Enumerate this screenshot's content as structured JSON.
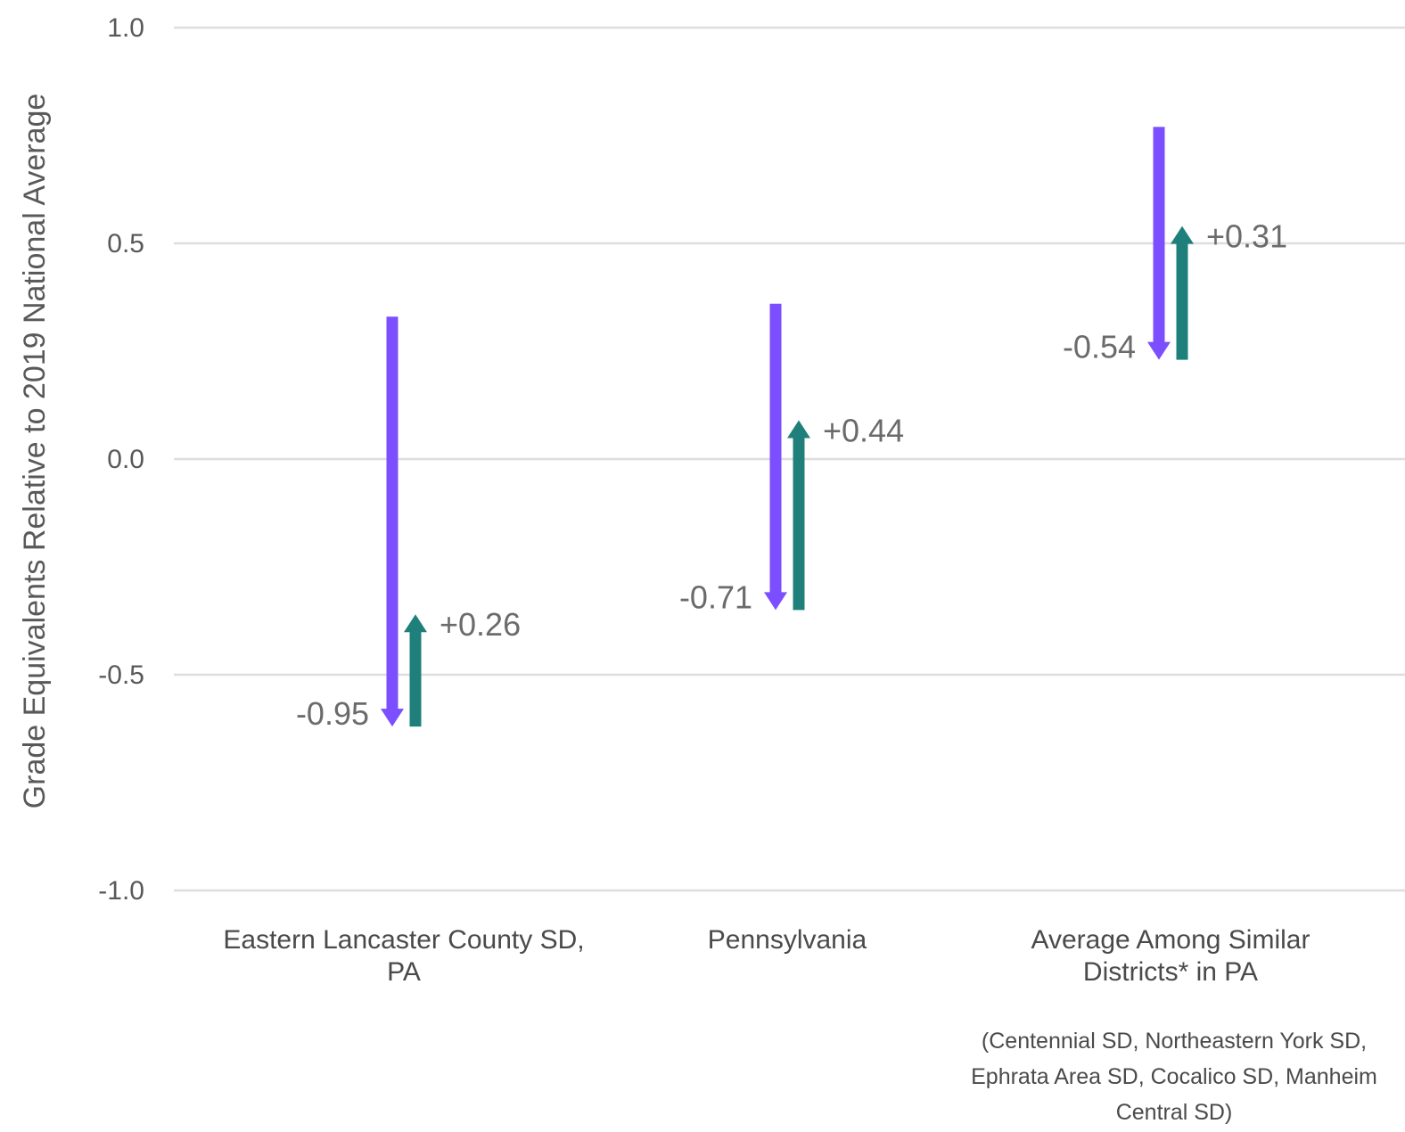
{
  "chart_data": {
    "type": "arrow",
    "ylabel": "Grade Equivalents Relative to 2019 National Average",
    "ylim": [
      -1.0,
      1.0
    ],
    "yticks": [
      1.0,
      0.5,
      0.0,
      -0.5,
      -1.0
    ],
    "ytick_labels": [
      "1.0",
      "0.5",
      "0.0",
      "-0.5",
      "-1.0"
    ],
    "grid": true,
    "colors": {
      "decline": "#7B4FFF",
      "recovery": "#1F7F7A",
      "grid": "#dedede",
      "text": "#595959"
    },
    "categories": [
      {
        "label_lines": [
          "Eastern Lancaster County SD,",
          "PA"
        ],
        "note_lines": [],
        "decline": {
          "start": 0.33,
          "end": -0.62,
          "label": "-0.95"
        },
        "recovery": {
          "start": -0.62,
          "end": -0.36,
          "label": "+0.26"
        }
      },
      {
        "label_lines": [
          "Pennsylvania"
        ],
        "note_lines": [],
        "decline": {
          "start": 0.36,
          "end": -0.35,
          "label": "-0.71"
        },
        "recovery": {
          "start": -0.35,
          "end": 0.09,
          "label": "+0.44"
        }
      },
      {
        "label_lines": [
          "Average Among Similar",
          "Districts* in PA"
        ],
        "note_lines": [
          "(Centennial SD, Northeastern York SD,",
          "Ephrata Area SD, Cocalico SD, Manheim",
          "Central SD)"
        ],
        "decline": {
          "start": 0.77,
          "end": 0.23,
          "label": "-0.54"
        },
        "recovery": {
          "start": 0.23,
          "end": 0.54,
          "label": "+0.31"
        }
      }
    ]
  }
}
